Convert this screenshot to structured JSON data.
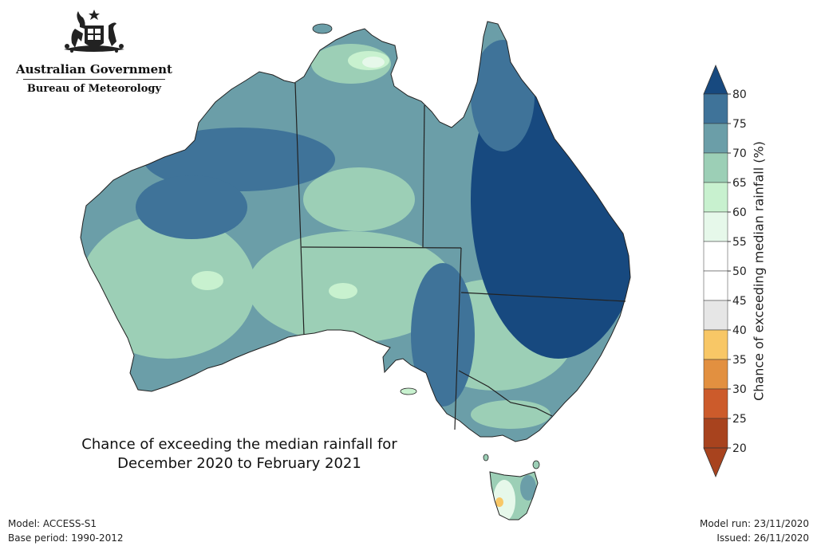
{
  "header": {
    "org_name": "Australian Government",
    "bureau_name": "Bureau of Meteorology"
  },
  "map": {
    "caption_line1": "Chance of exceeding the median rainfall for",
    "caption_line2": "December 2020 to February 2021",
    "variable": "Chance of exceeding median rainfall (%)"
  },
  "colorbar": {
    "title": "Chance of exceeding median rainfall (%)",
    "ticks": [
      "80",
      "75",
      "70",
      "65",
      "60",
      "55",
      "50",
      "45",
      "40",
      "35",
      "30",
      "25",
      "20"
    ],
    "colors": [
      "#17497f",
      "#3f7399",
      "#6b9ea8",
      "#9ccfb6",
      "#c8f1cf",
      "#e6f8ea",
      "#ffffff",
      "#ffffff",
      "#e6e6e6",
      "#f8c766",
      "#e29040",
      "#cc5b2b",
      "#a8431e"
    ]
  },
  "footer": {
    "model": "Model: ACCESS-S1",
    "base_period": "Base period: 1990-2012",
    "model_run": "Model run: 23/11/2020",
    "issued": "Issued: 26/11/2020"
  }
}
